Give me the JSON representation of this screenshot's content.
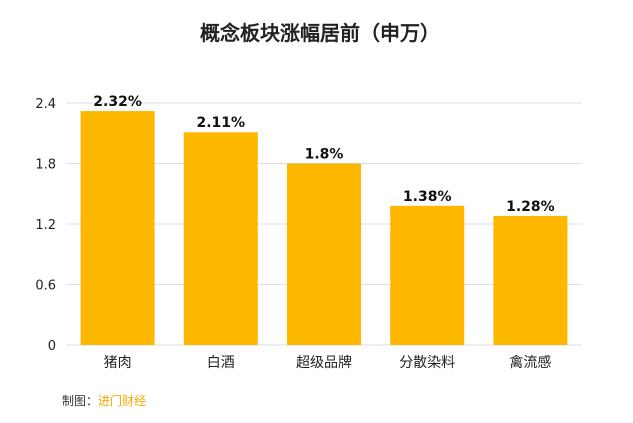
{
  "colors": {
    "bar": "#FFB800",
    "source": "#F5A800"
  },
  "credit": {
    "label": "制图：",
    "source": "进门财经"
  },
  "chart_data": {
    "type": "bar",
    "title": "概念板块涨幅居前（申万）",
    "categories": [
      "猪肉",
      "白酒",
      "超级品牌",
      "分散染料",
      "禽流感"
    ],
    "values": [
      2.32,
      2.11,
      1.8,
      1.38,
      1.28
    ],
    "data_labels": [
      "2.32%",
      "2.11%",
      "1.8%",
      "1.38%",
      "1.28%"
    ],
    "yticks": [
      "0",
      "0.6",
      "1.2",
      "1.8",
      "2.4"
    ],
    "ylim": [
      0,
      2.4
    ],
    "grid": true,
    "legend": "none",
    "xlabel": "",
    "ylabel": ""
  }
}
